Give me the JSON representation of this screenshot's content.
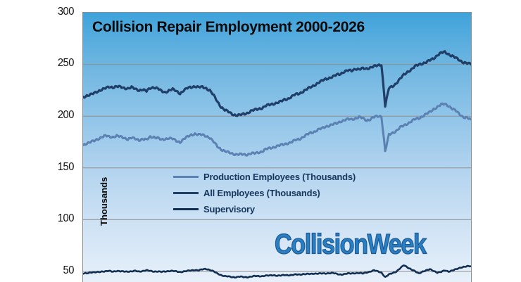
{
  "title": "Collision Repair Employment 2000-2026",
  "watermark": "CollisionWeek",
  "y_axis": {
    "label": "Thousands",
    "ticks": [
      "300",
      "250",
      "200",
      "150",
      "100",
      "50"
    ]
  },
  "legend": [
    {
      "label": "Production Employees (Thousands)",
      "color": "#5b80b2"
    },
    {
      "label": "All Employees (Thousands)",
      "color": "#1f3e68"
    },
    {
      "label": "Supervisory",
      "color": "#122f52"
    }
  ],
  "colors": {
    "plot_gradient_top": "#3fa3db",
    "plot_gradient_bottom": "#e7f0fa",
    "gridline": "#8f8f8f",
    "plot_border": "#8e8e8e",
    "title_text": "#0a0a0a",
    "legend_text": "#17365d",
    "watermark_blue": "#2a7fc3"
  },
  "chart_data": {
    "type": "line",
    "title": "Collision Repair Employment 2000-2026",
    "ylabel": "Thousands",
    "x_start": 2000,
    "x_end": 2026,
    "x_step_years": 0.25,
    "visible_value_range": [
      40,
      300
    ],
    "gridlines": [
      250,
      200,
      150,
      100,
      50
    ],
    "legend_position": "middle-left-inside",
    "series": [
      {
        "name": "Production Employees (Thousands)",
        "color": "#5b80b2",
        "stroke_width": 3,
        "values": [
          172,
          174,
          175,
          176,
          178,
          180,
          181,
          180,
          180,
          181,
          180,
          179,
          178,
          179,
          178,
          177,
          178,
          177,
          180,
          180,
          179,
          177,
          178,
          179,
          178,
          176,
          175,
          178,
          180,
          182,
          183,
          182,
          182,
          181,
          179,
          175,
          171,
          168,
          166,
          165,
          164,
          163,
          163,
          163,
          163,
          164,
          164,
          165,
          166,
          168,
          169,
          170,
          171,
          172,
          173,
          174,
          175,
          177,
          178,
          180,
          182,
          184,
          185,
          187,
          188,
          190,
          191,
          192,
          193,
          195,
          196,
          197,
          197,
          198,
          199,
          198,
          196,
          197,
          199,
          200,
          200,
          166,
          182,
          184,
          186,
          189,
          191,
          193,
          195,
          197,
          198,
          200,
          202,
          204,
          207,
          209,
          211,
          212,
          210,
          207,
          205,
          202,
          199,
          198,
          197
        ]
      },
      {
        "name": "All Employees (Thousands)",
        "color": "#1f3e68",
        "stroke_width": 3.2,
        "values": [
          218,
          220,
          221,
          222,
          224,
          226,
          227,
          228,
          228,
          229,
          228,
          227,
          227,
          228,
          226,
          225,
          226,
          224,
          227,
          228,
          227,
          224,
          223,
          225,
          226,
          224,
          222,
          225,
          227,
          228,
          229,
          228,
          228,
          227,
          225,
          220,
          214,
          209,
          206,
          204,
          202,
          201,
          201,
          202,
          203,
          205,
          206,
          207,
          208,
          210,
          211,
          212,
          213,
          214,
          216,
          217,
          219,
          221,
          222,
          224,
          226,
          228,
          230,
          232,
          234,
          236,
          237,
          238,
          240,
          241,
          243,
          244,
          244,
          246,
          245,
          246,
          246,
          247,
          248,
          249,
          250,
          210,
          227,
          229,
          232,
          236,
          240,
          243,
          245,
          248,
          250,
          251,
          252,
          254,
          256,
          259,
          261,
          262,
          260,
          258,
          256,
          254,
          252,
          251,
          250
        ]
      },
      {
        "name": "Supervisory",
        "color": "#122f52",
        "stroke_width": 2.6,
        "values": [
          48,
          48.5,
          49,
          49,
          49.5,
          50,
          50,
          50.5,
          50,
          50.5,
          50,
          50,
          50,
          50,
          50.5,
          50,
          50.5,
          51,
          50.5,
          50,
          50,
          49.5,
          50,
          50.5,
          50.5,
          50,
          49.5,
          50,
          50.5,
          51,
          51.5,
          51,
          52,
          52.5,
          51.5,
          50,
          48,
          46.5,
          45.5,
          45,
          44.5,
          44.5,
          45,
          44.5,
          44.5,
          45,
          45.5,
          45.5,
          45.5,
          46,
          46,
          46.5,
          46,
          46,
          46.5,
          46.5,
          46.5,
          47,
          47,
          47.5,
          47.5,
          47.5,
          48,
          48,
          48,
          48,
          48.5,
          48.5,
          47.5,
          47,
          47.5,
          48,
          48,
          48.5,
          48.5,
          48,
          49,
          50,
          51,
          50,
          49,
          44.5,
          47,
          48.5,
          50,
          53,
          56,
          54,
          52,
          50,
          48,
          50,
          51,
          52,
          50.5,
          49,
          49.5,
          51,
          50,
          51,
          52,
          53.5,
          54.5,
          55,
          55
        ]
      }
    ]
  }
}
